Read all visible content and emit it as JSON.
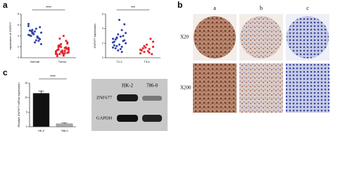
{
  "panels": {
    "a": "a",
    "b": "b",
    "c": "c"
  },
  "chart_data": [
    {
      "type": "strip",
      "ylabel": "expression of ZNF677",
      "categories": [
        "Normal",
        "Tumor"
      ],
      "colors": [
        "#2f3fa8",
        "#e0262b"
      ],
      "values": [
        [
          4.2,
          3.8,
          5.1,
          4.6,
          3.2,
          4.9,
          5.6,
          2.8,
          4.1,
          3.6,
          4.4,
          6.2,
          3.9,
          4.7,
          2.5,
          5.3,
          4.0,
          3.4,
          4.8,
          5.0,
          3.1,
          4.3,
          5.8,
          3.7,
          4.5
        ],
        [
          1.2,
          0.8,
          2.1,
          1.6,
          0.5,
          1.9,
          2.6,
          0.9,
          1.4,
          3.1,
          1.1,
          0.7,
          1.8,
          2.3,
          1.0,
          0.4,
          1.5,
          2.8,
          1.3,
          0.6,
          1.7,
          2.0,
          0.9,
          1.2,
          3.5,
          1.4,
          0.8,
          2.2,
          1.6,
          1.1,
          0.3,
          1.9,
          2.5,
          1.0,
          1.3,
          0.7,
          1.8,
          4.0,
          1.5,
          0.9
        ]
      ],
      "ylim": [
        0,
        8
      ],
      "yticks": [
        0,
        2,
        4,
        6,
        8
      ],
      "significance": "****"
    },
    {
      "type": "strip",
      "ylabel": "ZNF677 expression",
      "categories": [
        "T1-2",
        "T3-4"
      ],
      "colors": [
        "#2f3fa8",
        "#e0262b"
      ],
      "values": [
        [
          2.1,
          1.5,
          2.8,
          3.4,
          1.2,
          2.5,
          4.6,
          1.8,
          2.2,
          3.0,
          1.0,
          2.6,
          3.8,
          1.6,
          2.0,
          2.9,
          1.3,
          2.4,
          5.2,
          1.7,
          2.3,
          3.2,
          1.4,
          0.8,
          2.7
        ],
        [
          1.1,
          0.7,
          1.6,
          2.2,
          0.9,
          1.3,
          0.5,
          1.8,
          1.0,
          2.6,
          1.4,
          0.6,
          1.2,
          0.8,
          1.5
        ]
      ],
      "ylim": [
        0,
        6
      ],
      "yticks": [
        0,
        2,
        4,
        6
      ],
      "significance": "***"
    },
    {
      "type": "bar",
      "ylabel": "Relative ZNF677 mRNA expression",
      "categories": [
        "HK-2",
        "786-0"
      ],
      "colors": [
        "#111111",
        "#aaaaaa"
      ],
      "values": [
        11.5,
        1.0
      ],
      "errors": [
        0.8,
        0.3
      ],
      "ylim": [
        0,
        15
      ],
      "yticks": [
        0,
        5,
        10,
        15
      ],
      "significance": "****"
    }
  ],
  "blot": {
    "lanes": [
      "HK-2",
      "786-0"
    ],
    "rows": [
      "ZNF677",
      "GAPDH"
    ]
  },
  "ihc": {
    "columns": [
      "a",
      "b",
      "c"
    ],
    "rows": [
      "X20",
      "X200"
    ]
  }
}
